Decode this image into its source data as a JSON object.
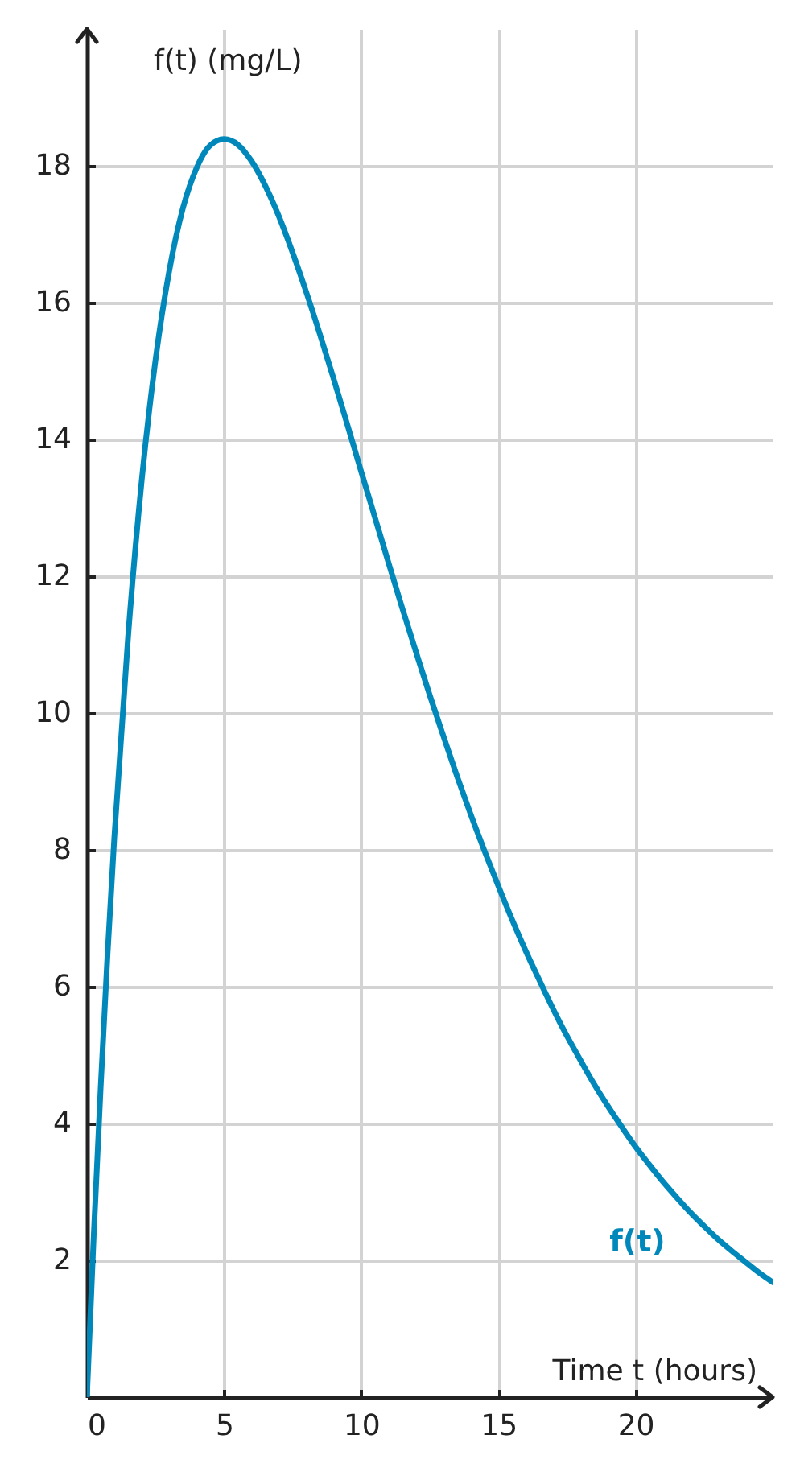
{
  "chart_data": {
    "type": "line",
    "xlabel": "Time t (hours)",
    "ylabel": "f(t) (mg/L)",
    "x": [
      0,
      0.25,
      0.5,
      0.75,
      1,
      1.5,
      2,
      2.5,
      3,
      3.5,
      4,
      4.5,
      5,
      5.5,
      6,
      6.5,
      7,
      7.5,
      8,
      8.5,
      9,
      9.5,
      10,
      10.5,
      11,
      11.5,
      12,
      12.5,
      13,
      13.5,
      14,
      14.5,
      15,
      15.5,
      16,
      16.5,
      17,
      17.5,
      18,
      18.5,
      19,
      19.5,
      20,
      20.5,
      21,
      21.5,
      22,
      22.5,
      23,
      23.5,
      24,
      24.5,
      25
    ],
    "series": [
      {
        "name": "f(t)",
        "color": "#0088bb",
        "values": [
          0,
          2.38,
          4.52,
          6.46,
          8.19,
          11.11,
          13.41,
          15.16,
          16.46,
          17.38,
          17.97,
          18.3,
          18.39,
          18.31,
          18.07,
          17.71,
          17.26,
          16.73,
          16.15,
          15.53,
          14.88,
          14.21,
          13.53,
          12.86,
          12.19,
          11.53,
          10.89,
          10.26,
          9.66,
          9.07,
          8.51,
          7.98,
          7.47,
          6.98,
          6.52,
          6.09,
          5.67,
          5.28,
          4.92,
          4.57,
          4.25,
          3.95,
          3.66,
          3.4,
          3.15,
          2.92,
          2.7,
          2.5,
          2.31,
          2.14,
          1.98,
          1.82,
          1.68
        ]
      }
    ],
    "xlim": [
      0,
      25
    ],
    "ylim": [
      0,
      20
    ],
    "xticks": [
      0,
      5,
      10,
      15,
      20
    ],
    "yticks": [
      2,
      4,
      6,
      8,
      10,
      12,
      14,
      16,
      18
    ],
    "grid": true
  }
}
